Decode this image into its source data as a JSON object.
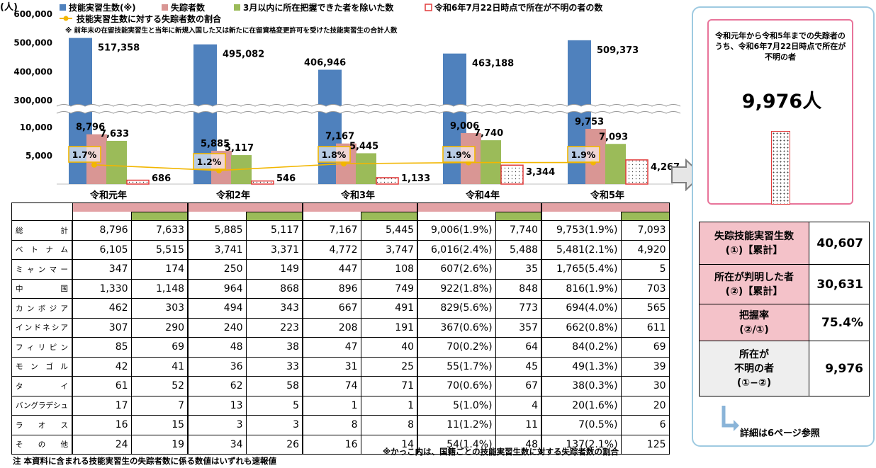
{
  "chart_data": {
    "type": "bar",
    "y_unit": "(人)",
    "y_axis_ticks_upper": [
      "600,000",
      "500,000",
      "400,000",
      "300,000"
    ],
    "y_axis_ticks_lower": [
      "10,000",
      "5,000"
    ],
    "axis_break": true,
    "categories": [
      "令和元年",
      "令和2年",
      "令和3年",
      "令和4年",
      "令和5年"
    ],
    "legend": {
      "trainees": "技能実習生数(※)",
      "missing": "失踪者数",
      "located": "3月以内に所在把握できた者を除いた数",
      "unknown": "令和6年7月22日時点で所在が不明の者の数",
      "rate": "技能実習生数に対する失踪者数の割合"
    },
    "footnote": "※ 前年末の在留技能実習生と当年に新規入国した又は新たに在留資格変更許可を受けた技能実習生の合計人数",
    "series": [
      {
        "name": "技能実習生数(※)",
        "color": "#4f81bd",
        "values": [
          517358,
          495082,
          406946,
          463188,
          509373
        ],
        "labels": [
          "517,358",
          "495,082",
          "406,946",
          "463,188",
          "509,373"
        ]
      },
      {
        "name": "失踪者数",
        "color": "#d99694",
        "values": [
          8796,
          5885,
          7167,
          9006,
          9753
        ],
        "labels": [
          "8,796",
          "5,885",
          "7,167",
          "9,006",
          "9,753"
        ]
      },
      {
        "name": "3月以内に所在把握できた者を除いた数",
        "color": "#9bbb59",
        "values": [
          7633,
          5117,
          5445,
          7740,
          7093
        ],
        "labels": [
          "7,633",
          "5,117",
          "5,445",
          "7,740",
          "7,093"
        ]
      },
      {
        "name": "令和6年7月22日時点で所在が不明の者の数",
        "color": "#e23b3b",
        "values": [
          686,
          546,
          1133,
          3344,
          4267
        ],
        "labels": [
          "686",
          "546",
          "1,133",
          "3,344",
          "4,267"
        ]
      },
      {
        "name": "技能実習生数に対する失踪者数の割合",
        "color": "#f2b600",
        "values": [
          1.7,
          1.2,
          1.8,
          1.9,
          1.9
        ],
        "labels": [
          "1.7%",
          "1.2%",
          "1.8%",
          "1.9%",
          "1.9%"
        ]
      }
    ]
  },
  "table": {
    "rows": [
      {
        "country": "総計",
        "cells": [
          "8,796",
          "7,633",
          "5,885",
          "5,117",
          "7,167",
          "5,445",
          "9,006(1.9%)",
          "7,740",
          "9,753(1.9%)",
          "7,093"
        ]
      },
      {
        "country": "ベトナム",
        "cells": [
          "6,105",
          "5,515",
          "3,741",
          "3,371",
          "4,772",
          "3,747",
          "6,016(2.4%)",
          "5,488",
          "5,481(2.1%)",
          "4,920"
        ]
      },
      {
        "country": "ミャンマー",
        "cells": [
          "347",
          "174",
          "250",
          "149",
          "447",
          "108",
          "607(2.6%)",
          "35",
          "1,765(5.4%)",
          "5"
        ]
      },
      {
        "country": "中国",
        "cells": [
          "1,330",
          "1,148",
          "964",
          "868",
          "896",
          "749",
          "922(1.8%)",
          "848",
          "816(1.9%)",
          "703"
        ]
      },
      {
        "country": "カンボジア",
        "cells": [
          "462",
          "303",
          "494",
          "343",
          "667",
          "491",
          "829(5.6%)",
          "773",
          "694(4.0%)",
          "565"
        ]
      },
      {
        "country": "インドネシア",
        "cells": [
          "307",
          "290",
          "240",
          "223",
          "208",
          "191",
          "367(0.6%)",
          "357",
          "662(0.8%)",
          "611"
        ]
      },
      {
        "country": "フィリピン",
        "cells": [
          "85",
          "69",
          "48",
          "38",
          "47",
          "40",
          "70(0.2%)",
          "64",
          "84(0.2%)",
          "69"
        ]
      },
      {
        "country": "モンゴル",
        "cells": [
          "42",
          "41",
          "36",
          "33",
          "31",
          "25",
          "55(1.7%)",
          "45",
          "49(1.3%)",
          "39"
        ]
      },
      {
        "country": "タイ",
        "cells": [
          "61",
          "52",
          "62",
          "58",
          "74",
          "71",
          "70(0.6%)",
          "67",
          "38(0.3%)",
          "30"
        ]
      },
      {
        "country": "バングラデシュ",
        "cells": [
          "17",
          "7",
          "13",
          "5",
          "1",
          "1",
          "5(1.0%)",
          "4",
          "20(1.6%)",
          "20"
        ]
      },
      {
        "country": "ラオス",
        "cells": [
          "16",
          "15",
          "3",
          "3",
          "8",
          "8",
          "11(1.2%)",
          "11",
          "7(0.5%)",
          "6"
        ]
      },
      {
        "country": "その他",
        "cells": [
          "24",
          "19",
          "34",
          "26",
          "16",
          "14",
          "54(1.4%)",
          "48",
          "137(2.1%)",
          "125"
        ]
      }
    ]
  },
  "notes": {
    "bottom": "注 本資料に含まれる技能実習生の失踪者数に係る数値はいずれも速報値",
    "paren": "※かっこ内は、国籍ごとの技能実習生数に対する失踪者数の割合"
  },
  "right_panel": {
    "box_text": "令和元年から令和5年までの失踪者のうち、令和6年7月22日時点で所在が不明の者",
    "box_count": "9,976人",
    "summary": [
      {
        "label_line1": "失踪技能実習生数",
        "label_line2": "(①)【累計】",
        "value": "40,607"
      },
      {
        "label_line1": "所在が判明した者",
        "label_line2": "(②)【累計】",
        "value": "30,631"
      },
      {
        "label_line1": "把握率",
        "label_line2": "(②/①)",
        "value": "75.4%"
      },
      {
        "label_line1": "所在が",
        "label_line2": "不明の者",
        "label_line3": "(①−②)",
        "value": "9,976"
      }
    ],
    "detail": "詳細は6ページ参照"
  }
}
